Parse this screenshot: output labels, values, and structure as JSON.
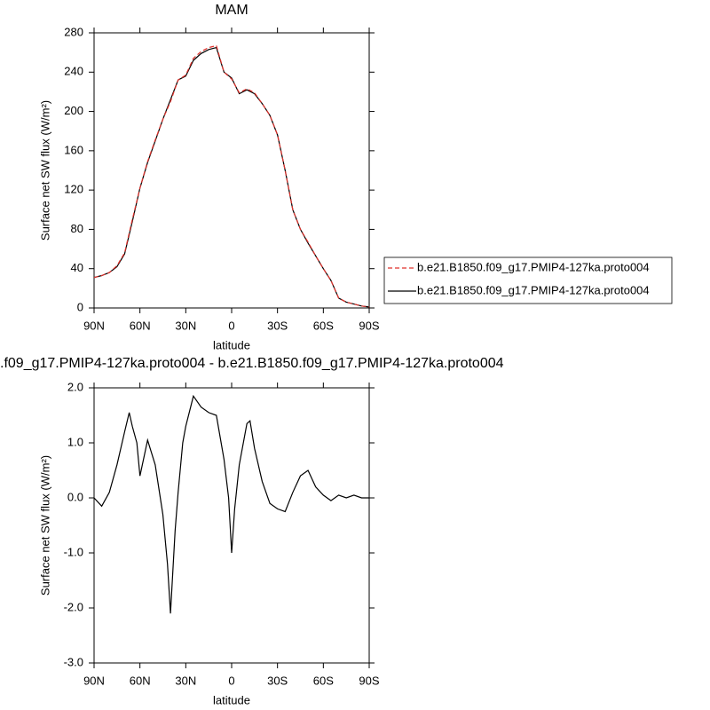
{
  "chart_data": [
    {
      "type": "line",
      "title": "MAM",
      "xlabel": "latitude",
      "ylabel": "Surface net SW flux (W/m²)",
      "x": [
        90,
        85,
        80,
        75,
        70,
        65,
        60,
        55,
        50,
        45,
        40,
        35,
        30,
        25,
        20,
        15,
        10,
        5,
        0,
        -5,
        -10,
        -15,
        -20,
        -25,
        -30,
        -35,
        -40,
        -45,
        -50,
        -55,
        -60,
        -65,
        -70,
        -75,
        -80,
        -85,
        -90
      ],
      "xlim": [
        90,
        -90
      ],
      "xticks": [
        {
          "value": 90,
          "label": "90N"
        },
        {
          "value": 60,
          "label": "60N"
        },
        {
          "value": 30,
          "label": "30N"
        },
        0,
        {
          "value": -30,
          "label": "30S"
        },
        {
          "value": -60,
          "label": "60S"
        },
        {
          "value": -90,
          "label": "90S"
        }
      ],
      "ylim": [
        0,
        280
      ],
      "yticks": [
        0,
        40,
        80,
        120,
        160,
        200,
        240,
        280
      ],
      "legend": "outside-right",
      "series": [
        {
          "name": "b.e21.B1850.f09_g17.PMIP4-127ka.proto004",
          "color": "#e0302a",
          "dashed": true,
          "values": [
            31,
            33,
            36,
            43,
            56,
            90,
            122,
            149,
            171,
            192,
            210,
            232,
            237,
            254,
            261,
            265,
            267,
            240,
            233,
            219,
            223,
            219,
            208,
            196,
            176,
            140,
            100,
            80,
            67,
            53,
            40,
            28,
            10,
            6,
            4,
            2,
            1
          ]
        },
        {
          "name": "b.e21.B1850.f09_g17.PMIP4-127ka.proto004",
          "color": "#000000",
          "dashed": false,
          "values": [
            31,
            33,
            36,
            42,
            55,
            88,
            122,
            148,
            170,
            192,
            212,
            232,
            236,
            252,
            259,
            263,
            265,
            240,
            234,
            218,
            222,
            218,
            208,
            196,
            176,
            140,
            100,
            80,
            66,
            53,
            40,
            28,
            10,
            6,
            4,
            2,
            1
          ]
        }
      ]
    },
    {
      "type": "line",
      "title": ".f09_g17.PMIP4-127ka.proto004 - b.e21.B1850.f09_g17.PMIP4-127ka.proto004",
      "xlabel": "latitude",
      "ylabel": "Surface net SW flux (W/m²)",
      "x": [
        90,
        85,
        80,
        75,
        70,
        67,
        65,
        62,
        60,
        55,
        50,
        45,
        42,
        40,
        37,
        35,
        32,
        30,
        25,
        20,
        15,
        10,
        5,
        2,
        0,
        -2,
        -5,
        -10,
        -12,
        -15,
        -20,
        -25,
        -30,
        -35,
        -40,
        -45,
        -50,
        -55,
        -60,
        -65,
        -70,
        -75,
        -80,
        -85,
        -90
      ],
      "xlim": [
        90,
        -90
      ],
      "xticks": [
        {
          "value": 90,
          "label": "90N"
        },
        {
          "value": 60,
          "label": "60N"
        },
        {
          "value": 30,
          "label": "30N"
        },
        0,
        {
          "value": -30,
          "label": "30S"
        },
        {
          "value": -60,
          "label": "60S"
        },
        {
          "value": -90,
          "label": "90S"
        }
      ],
      "ylim": [
        -3,
        2
      ],
      "yticks": [
        {
          "value": -3,
          "label": "-3.0"
        },
        {
          "value": -2,
          "label": "-2.0"
        },
        {
          "value": -1,
          "label": "-1.0"
        },
        {
          "value": 0,
          "label": "0.0"
        },
        {
          "value": 1,
          "label": "1.0"
        },
        {
          "value": 2,
          "label": "2.0"
        }
      ],
      "color": "#000000",
      "values": [
        0.0,
        -0.15,
        0.1,
        0.6,
        1.2,
        1.55,
        1.3,
        1.0,
        0.4,
        1.05,
        0.6,
        -0.3,
        -1.2,
        -2.1,
        -0.6,
        0.1,
        1.0,
        1.3,
        1.85,
        1.65,
        1.55,
        1.5,
        0.7,
        0.0,
        -1.0,
        -0.2,
        0.6,
        1.35,
        1.4,
        0.9,
        0.3,
        -0.1,
        -0.2,
        -0.25,
        0.1,
        0.4,
        0.5,
        0.2,
        0.05,
        -0.05,
        0.05,
        0.0,
        0.05,
        0.0,
        0.0
      ]
    }
  ]
}
